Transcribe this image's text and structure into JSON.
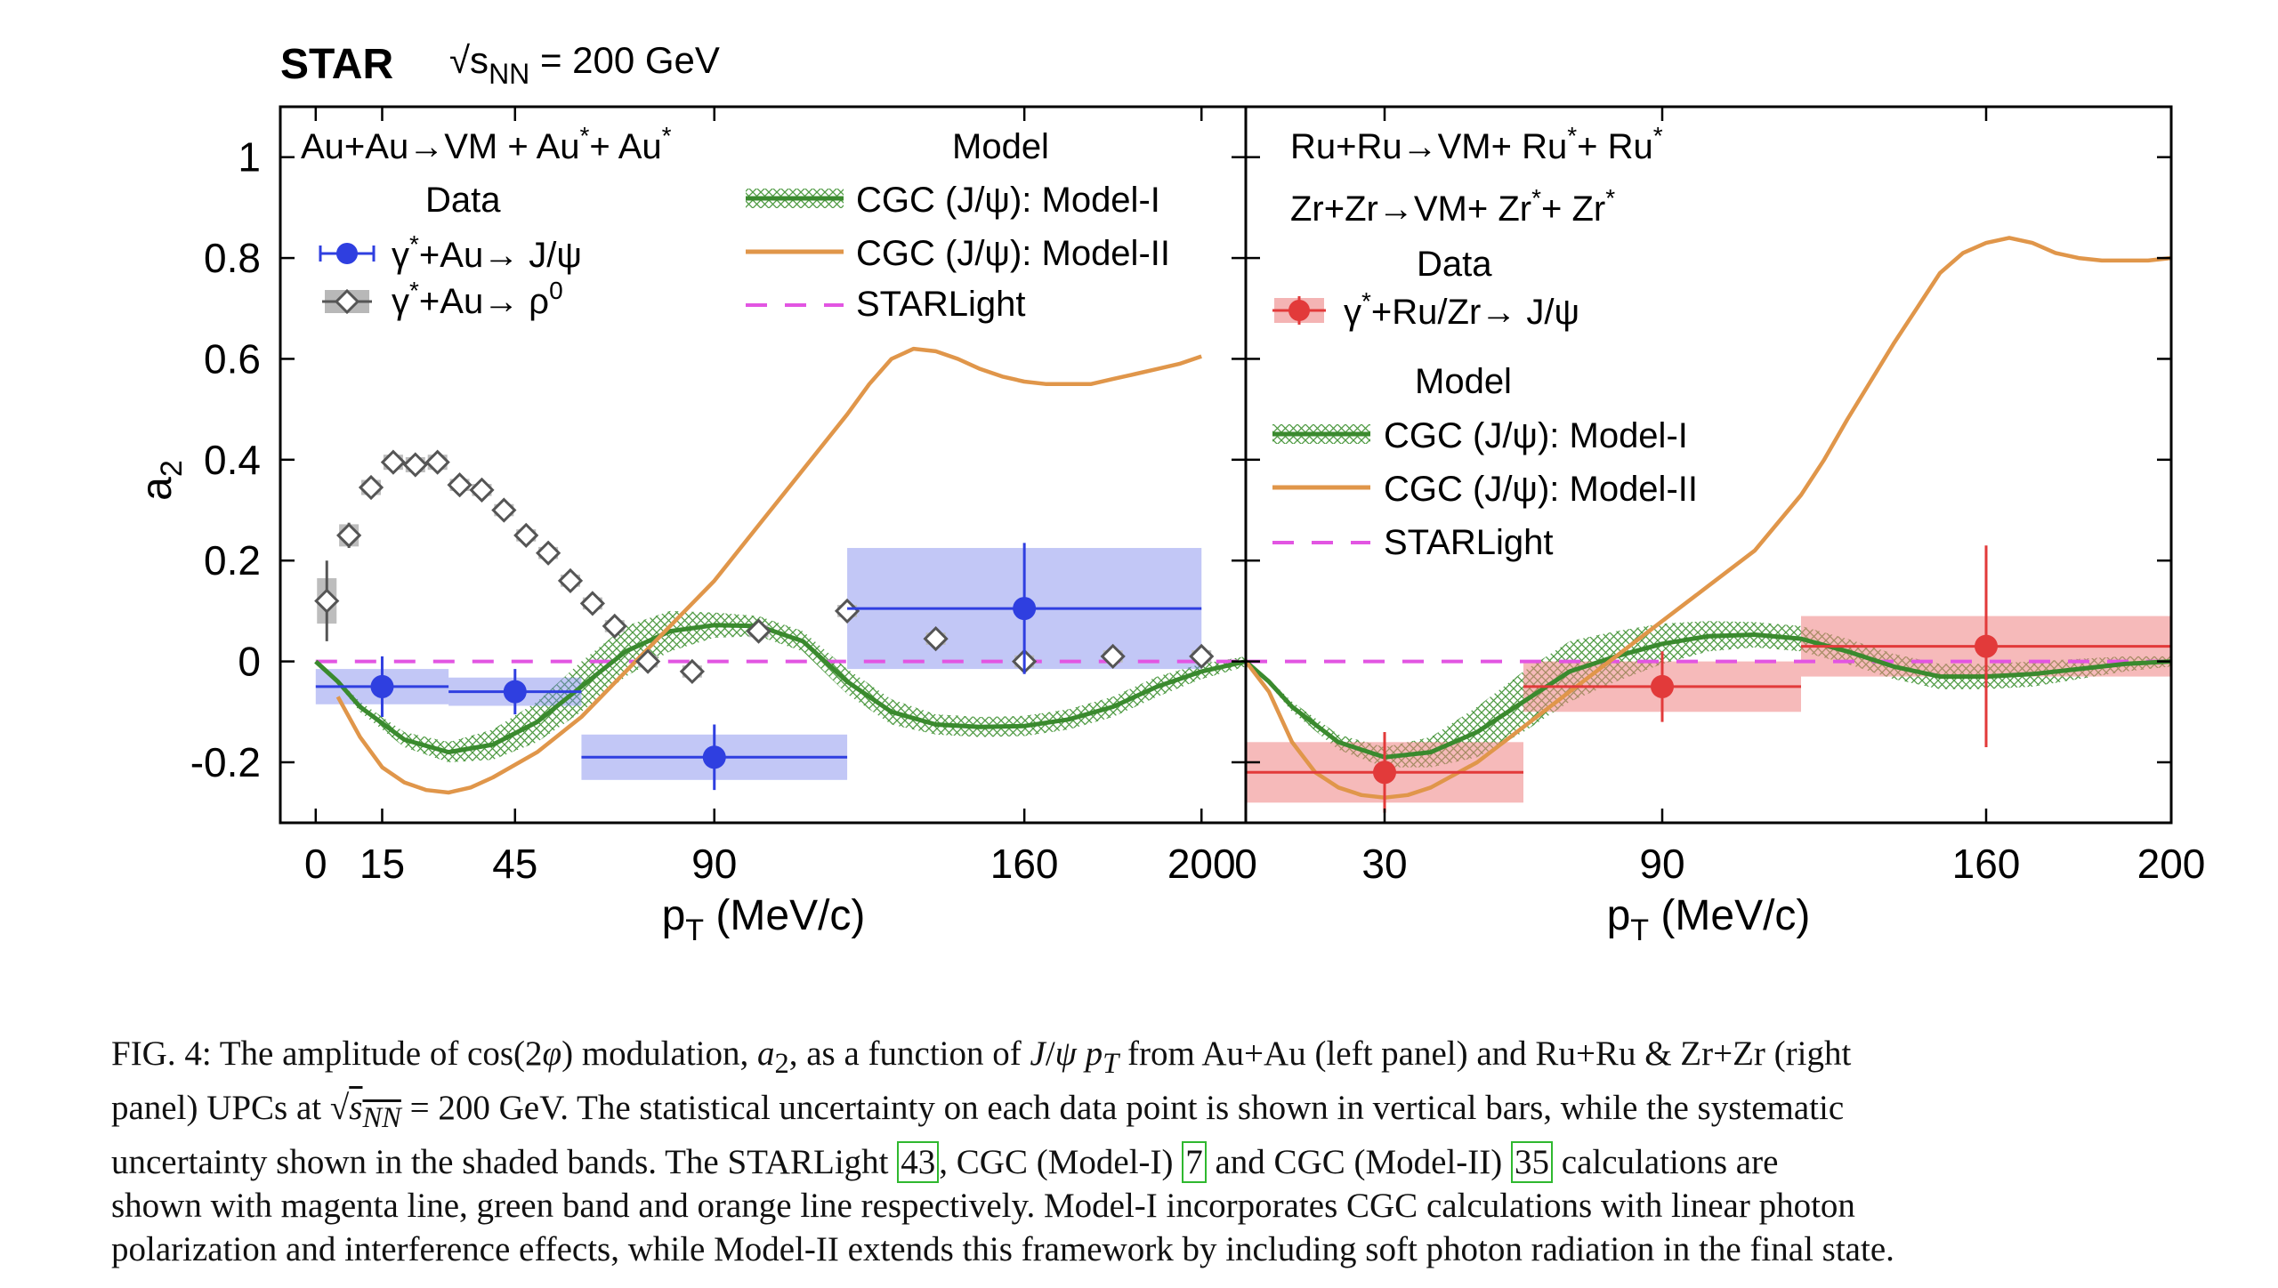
{
  "header": {
    "experiment": "STAR",
    "energy_label": "√sNN = 200 GeV"
  },
  "chart_data": [
    {
      "type": "scatter",
      "panel": "left",
      "process_label": "Au+Au→VM + Au*+ Au*",
      "data_heading": "Data",
      "model_heading": "Model",
      "xlabel": "pT (MeV/c)",
      "ylabel": "a2",
      "xlim": [
        -8,
        210
      ],
      "ylim": [
        -0.32,
        1.1
      ],
      "xticks": [
        0,
        15,
        45,
        90,
        160,
        200
      ],
      "yticks": [
        -0.2,
        0,
        0.2,
        0.4,
        0.6,
        0.8,
        1
      ],
      "ytick_labels": [
        "-0.2",
        "0",
        "0.2",
        "0.4",
        "0.6",
        "0.8",
        "1"
      ],
      "legend": [
        {
          "label": "γ*+Au→ J/ψ",
          "color": "#2f3fe0",
          "marker": "circle"
        },
        {
          "label": "γ*+Au→ ρ0",
          "color": "#6e6e6e",
          "marker": "open-diamond"
        },
        {
          "label": "CGC (J/ψ): Model-I",
          "color": "#3a8a2e",
          "marker": "band"
        },
        {
          "label": "CGC (J/ψ): Model-II",
          "color": "#e0964a",
          "marker": "line"
        },
        {
          "label": "STARLight",
          "color": "#e255e2",
          "marker": "dashed"
        }
      ],
      "series": [
        {
          "name": "γ*+Au→ J/ψ",
          "x": [
            15,
            45,
            90,
            160
          ],
          "y": [
            -0.05,
            -0.06,
            -0.19,
            0.105
          ],
          "x_err": [
            15,
            15,
            30,
            40
          ],
          "y_err_stat": [
            0.06,
            0.045,
            0.065,
            0.13
          ],
          "y_sys": [
            0.035,
            0.028,
            0.045,
            0.12
          ]
        },
        {
          "name": "γ*+Au→ ρ0",
          "x": [
            2.5,
            7.5,
            12.5,
            17.5,
            22.5,
            27.5,
            32.5,
            37.5,
            42.5,
            47.5,
            52.5,
            57.5,
            62.5,
            67.5,
            75,
            85,
            100,
            120,
            140,
            160,
            180,
            200
          ],
          "y": [
            0.12,
            0.25,
            0.345,
            0.395,
            0.39,
            0.395,
            0.35,
            0.34,
            0.3,
            0.25,
            0.215,
            0.16,
            0.115,
            0.07,
            0,
            -0.02,
            0.06,
            0.1,
            0.045,
            0,
            0.01,
            0.01
          ],
          "y_err_stat": [
            0.08,
            0.025,
            0.015,
            0.015,
            0.015,
            0.015,
            0.015,
            0.015,
            0.015,
            0.015,
            0.015,
            0.015,
            0.015,
            0.015,
            0.015,
            0.015,
            0.015,
            0.015,
            0.015,
            0.015,
            0.015,
            0.015
          ],
          "y_sys": [
            0.045,
            0.022,
            0.015,
            0.015,
            0.015,
            0.015,
            0.012,
            0.012,
            0.012,
            0.012,
            0.012,
            0.012,
            0.012,
            0.012,
            0.012,
            0.012,
            0.012,
            0.012,
            0.012,
            0.012,
            0.012,
            0.012
          ]
        },
        {
          "name": "CGC (J/ψ): Model-I",
          "x": [
            0,
            5,
            10,
            20,
            30,
            40,
            50,
            60,
            70,
            80,
            90,
            100,
            110,
            120,
            130,
            140,
            150,
            160,
            170,
            180,
            190,
            200,
            210
          ],
          "y": [
            0,
            -0.04,
            -0.09,
            -0.155,
            -0.18,
            -0.165,
            -0.12,
            -0.05,
            0.02,
            0.06,
            0.072,
            0.07,
            0.04,
            -0.04,
            -0.1,
            -0.125,
            -0.13,
            -0.128,
            -0.115,
            -0.09,
            -0.05,
            -0.02,
            0
          ],
          "band": [
            0,
            0.005,
            0.01,
            0.015,
            0.02,
            0.03,
            0.04,
            0.05,
            0.05,
            0.04,
            0.025,
            0.02,
            0.02,
            0.025,
            0.025,
            0.02,
            0.02,
            0.02,
            0.02,
            0.02,
            0.02,
            0.015,
            0.01
          ]
        },
        {
          "name": "CGC (J/ψ): Model-II",
          "x": [
            5,
            10,
            15,
            20,
            25,
            30,
            35,
            40,
            50,
            60,
            70,
            80,
            90,
            100,
            110,
            120,
            125,
            130,
            135,
            140,
            145,
            150,
            155,
            160,
            165,
            170,
            175,
            180,
            185,
            190,
            195,
            200
          ],
          "y": [
            -0.07,
            -0.15,
            -0.21,
            -0.24,
            -0.255,
            -0.26,
            -0.25,
            -0.23,
            -0.18,
            -0.11,
            -0.02,
            0.07,
            0.16,
            0.27,
            0.38,
            0.49,
            0.55,
            0.6,
            0.62,
            0.615,
            0.6,
            0.58,
            0.565,
            0.555,
            0.55,
            0.55,
            0.55,
            0.56,
            0.57,
            0.58,
            0.59,
            0.605
          ]
        },
        {
          "name": "STARLight",
          "x": [
            0,
            210
          ],
          "y": [
            0,
            0
          ]
        }
      ]
    },
    {
      "type": "scatter",
      "panel": "right",
      "process_label": "Ru+Ru→VM+ Ru*+ Ru*",
      "process_label_2": "Zr+Zr→VM+ Zr*+ Zr*",
      "data_heading": "Data",
      "model_heading": "Model",
      "xlabel": "pT (MeV/c)",
      "ylabel": "",
      "xlim": [
        0,
        200
      ],
      "ylim": [
        -0.32,
        1.1
      ],
      "xticks": [
        0,
        30,
        90,
        160,
        200
      ],
      "legend": [
        {
          "label": "γ*+Ru/Zr→ J/ψ",
          "color": "#e23a3a",
          "marker": "circle"
        },
        {
          "label": "CGC (J/ψ): Model-I",
          "color": "#3a8a2e",
          "marker": "band"
        },
        {
          "label": "CGC (J/ψ): Model-II",
          "color": "#e0964a",
          "marker": "line"
        },
        {
          "label": "STARLight",
          "color": "#e255e2",
          "marker": "dashed"
        }
      ],
      "series": [
        {
          "name": "γ*+Ru/Zr→ J/ψ",
          "x": [
            30,
            90,
            160
          ],
          "y": [
            -0.22,
            -0.05,
            0.03
          ],
          "x_err": [
            30,
            30,
            40
          ],
          "y_err_stat": [
            0.08,
            0.07,
            0.2
          ],
          "y_sys": [
            0.06,
            0.05,
            0.06
          ]
        },
        {
          "name": "CGC (J/ψ): Model-I",
          "x": [
            0,
            5,
            10,
            20,
            30,
            40,
            50,
            60,
            70,
            80,
            90,
            100,
            110,
            120,
            130,
            140,
            150,
            160,
            170,
            180,
            190,
            200
          ],
          "y": [
            0,
            -0.04,
            -0.09,
            -0.16,
            -0.19,
            -0.18,
            -0.14,
            -0.08,
            -0.02,
            0.01,
            0.035,
            0.05,
            0.053,
            0.045,
            0.02,
            -0.01,
            -0.03,
            -0.03,
            -0.025,
            -0.015,
            -0.005,
            0
          ],
          "band": [
            0,
            0.005,
            0.01,
            0.015,
            0.02,
            0.03,
            0.05,
            0.06,
            0.06,
            0.05,
            0.04,
            0.03,
            0.025,
            0.025,
            0.025,
            0.025,
            0.025,
            0.025,
            0.025,
            0.02,
            0.015,
            0.01
          ]
        },
        {
          "name": "CGC (J/ψ): Model-II",
          "x": [
            0,
            5,
            10,
            15,
            20,
            25,
            30,
            35,
            40,
            50,
            60,
            70,
            80,
            90,
            100,
            110,
            120,
            125,
            130,
            140,
            145,
            150,
            155,
            160,
            165,
            170,
            175,
            180,
            185,
            190,
            195,
            200
          ],
          "y": [
            0,
            -0.06,
            -0.16,
            -0.22,
            -0.25,
            -0.265,
            -0.27,
            -0.265,
            -0.25,
            -0.2,
            -0.13,
            -0.06,
            0.01,
            0.08,
            0.15,
            0.22,
            0.33,
            0.4,
            0.48,
            0.63,
            0.7,
            0.77,
            0.81,
            0.83,
            0.84,
            0.83,
            0.81,
            0.8,
            0.795,
            0.795,
            0.795,
            0.8
          ]
        },
        {
          "name": "STARLight",
          "x": [
            0,
            200
          ],
          "y": [
            0,
            0
          ]
        }
      ]
    }
  ],
  "caption": {
    "lines": [
      "FIG. 4: The amplitude of cos(2φ) modulation, a2, as a function of J/ψ pT from Au+Au (left panel) and Ru+Ru & Zr+Zr (right",
      "panel) UPCs at √sNN = 200 GeV. The statistical uncertainty on each data point is shown in vertical bars, while the systematic",
      "uncertainty shown in the shaded bands. The STARLight [43], CGC (Model-I) [7] and CGC (Model-II) [35] calculations are",
      "shown with magenta line, green band and orange line respectively. Model-I incorporates CGC calculations with linear photon",
      "polarization and interference effects, while Model-II extends this framework by including soft photon radiation in the final state."
    ]
  }
}
